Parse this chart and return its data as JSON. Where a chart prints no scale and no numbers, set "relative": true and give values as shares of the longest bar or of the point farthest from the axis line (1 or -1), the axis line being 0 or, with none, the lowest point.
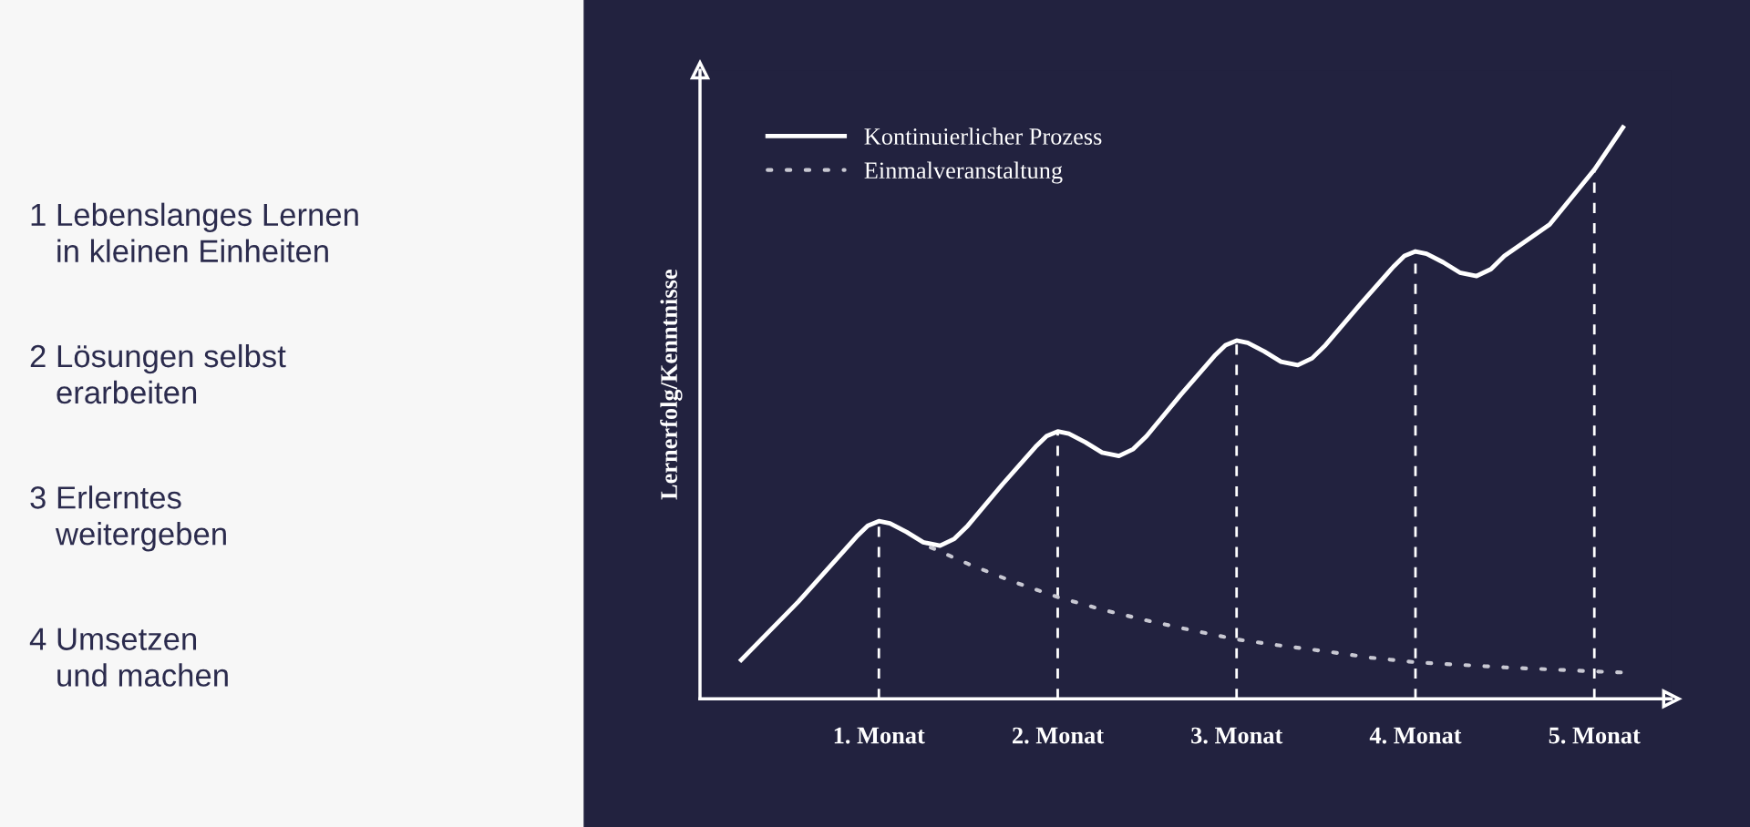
{
  "chart_data": [
    {
      "type": "other",
      "annotations": [
        "1 Lebenslanges Lernen\n   in kleinen Einheiten",
        "2 Lösungen selbst\n   erarbeiten",
        "3 Erlerntes\n   weitergeben",
        "4 Umsetzen\n   und machen"
      ]
    },
    {
      "type": "line",
      "relative": true,
      "ylabel": "Lernerfolg/Kenntnisse",
      "xlim": [
        0,
        5.43
      ],
      "xticks": [
        {
          "value": 1,
          "label": "1. Monat"
        },
        {
          "value": 2,
          "label": "2. Monat"
        },
        {
          "value": 3,
          "label": "3. Monat"
        },
        {
          "value": 4,
          "label": "4. Monat"
        },
        {
          "value": 5,
          "label": "5. Monat"
        }
      ],
      "legend": "top left",
      "grid": false,
      "series": [
        {
          "name": "Kontinuierlicher Prozess",
          "color": "#ffffff",
          "line_style": "solid",
          "x": [
            0.23,
            0.55,
            0.876,
            0.938,
            1.0,
            1.062,
            1.155,
            1.248,
            1.342,
            1.422,
            1.497,
            1.69,
            1.876,
            1.938,
            2.0,
            2.062,
            2.155,
            2.248,
            2.342,
            2.422,
            2.497,
            2.69,
            2.876,
            2.938,
            3.0,
            3.062,
            3.155,
            3.248,
            3.342,
            3.422,
            3.497,
            3.69,
            3.876,
            3.938,
            4.0,
            4.062,
            4.155,
            4.248,
            4.342,
            4.422,
            4.497,
            4.75,
            5.0,
            5.16
          ],
          "values": [
            0.068,
            0.17,
            0.284,
            0.303,
            0.311,
            0.307,
            0.292,
            0.274,
            0.268,
            0.28,
            0.303,
            0.375,
            0.441,
            0.46,
            0.468,
            0.464,
            0.449,
            0.431,
            0.425,
            0.437,
            0.46,
            0.533,
            0.6,
            0.619,
            0.627,
            0.623,
            0.608,
            0.59,
            0.584,
            0.596,
            0.619,
            0.69,
            0.756,
            0.775,
            0.783,
            0.779,
            0.764,
            0.746,
            0.74,
            0.752,
            0.775,
            0.83,
            0.926,
            1.0
          ]
        },
        {
          "name": "Einmalveranstaltung",
          "color": "#c8c8d2",
          "line_style": "dotted",
          "x": [
            1.29,
            1.5,
            1.75,
            2.0,
            2.25,
            2.5,
            2.75,
            3.0,
            3.25,
            3.5,
            3.75,
            4.0,
            4.5,
            5.0,
            5.17
          ],
          "values": [
            0.265,
            0.236,
            0.205,
            0.178,
            0.156,
            0.137,
            0.12,
            0.104,
            0.093,
            0.083,
            0.072,
            0.064,
            0.055,
            0.048,
            0.046
          ]
        }
      ],
      "ref_lines": [
        {
          "axis": "x",
          "value": 1,
          "line_style": "dashed",
          "color": "#ffffff"
        },
        {
          "axis": "x",
          "value": 2,
          "line_style": "dashed",
          "color": "#ffffff"
        },
        {
          "axis": "x",
          "value": 3,
          "line_style": "dashed",
          "color": "#ffffff"
        },
        {
          "axis": "x",
          "value": 4,
          "line_style": "dashed",
          "color": "#ffffff"
        },
        {
          "axis": "x",
          "value": 5,
          "line_style": "dashed",
          "color": "#ffffff"
        }
      ]
    }
  ]
}
